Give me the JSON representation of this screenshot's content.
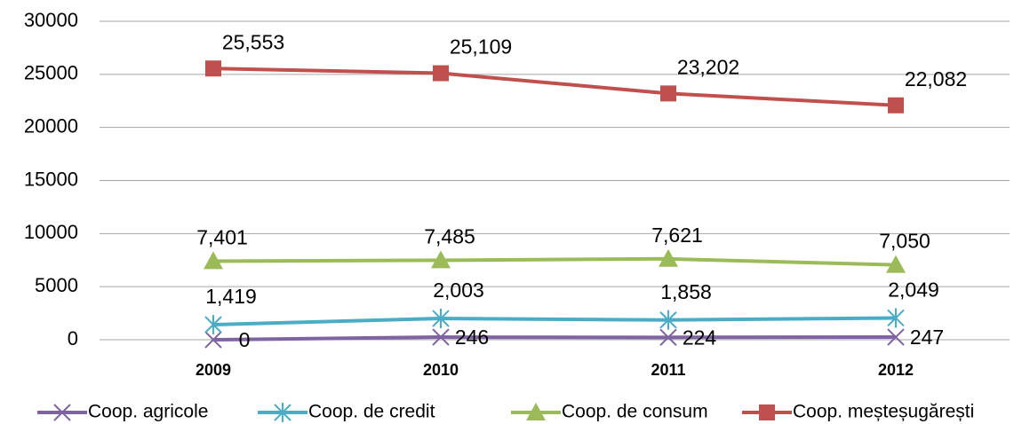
{
  "chart_data": {
    "type": "line",
    "categories": [
      "2009",
      "2010",
      "2011",
      "2012"
    ],
    "series": [
      {
        "name": "Coop. agricole",
        "color": "#8064a2",
        "marker": "x",
        "values": [
          0,
          246,
          224,
          247
        ],
        "value_labels": [
          "0",
          "246",
          "224",
          "247"
        ]
      },
      {
        "name": "Coop. de credit",
        "color": "#4bacc6",
        "marker": "star",
        "values": [
          1419,
          2003,
          1858,
          2049
        ],
        "value_labels": [
          "1,419",
          "2,003",
          "1,858",
          "2,049"
        ]
      },
      {
        "name": "Coop. de consum",
        "color": "#9bbb59",
        "marker": "triangle",
        "values": [
          7401,
          7485,
          7621,
          7050
        ],
        "value_labels": [
          "7,401",
          "7,485",
          "7,621",
          "7,050"
        ]
      },
      {
        "name": "Coop. meșteșugărești",
        "color": "#c0504d",
        "marker": "square",
        "values": [
          25553,
          25109,
          23202,
          22082
        ],
        "value_labels": [
          "25,553",
          "25,109",
          "23,202",
          "22,082"
        ]
      }
    ],
    "ylim": [
      0,
      30000
    ],
    "yticks": [
      0,
      5000,
      10000,
      15000,
      20000,
      25000,
      30000
    ],
    "grid": true,
    "legend": "bottom"
  }
}
